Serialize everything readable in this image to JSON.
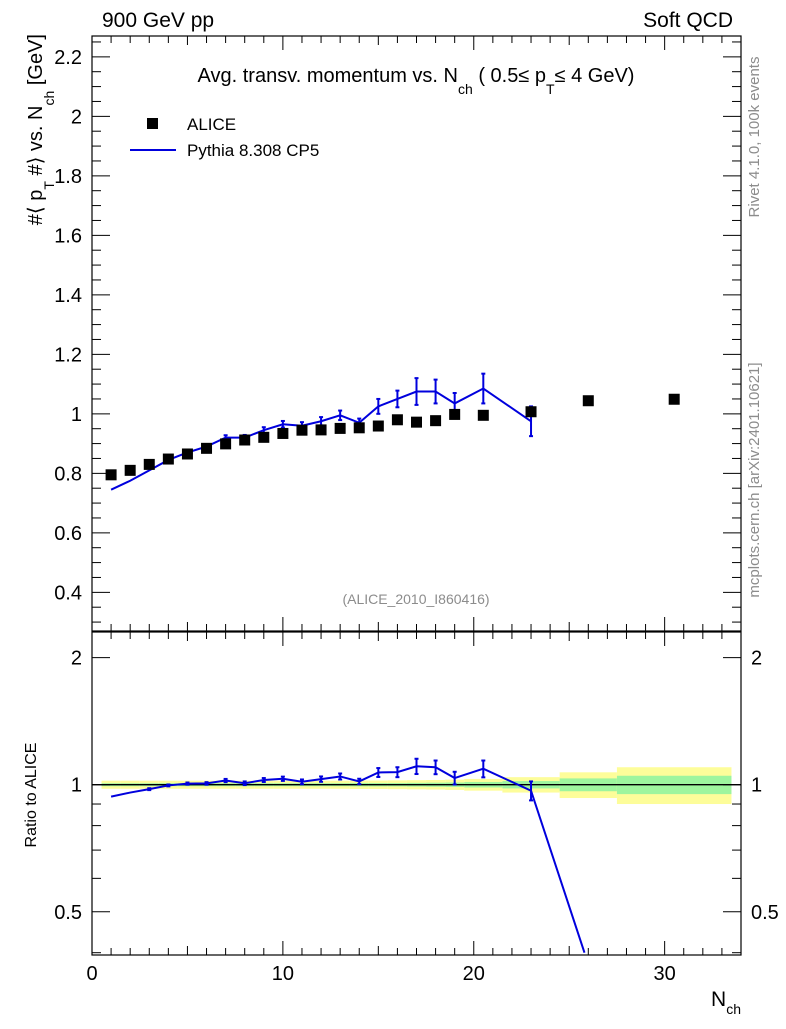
{
  "header": {
    "left": "900 GeV pp",
    "right": "Soft QCD"
  },
  "side_labels": {
    "top": "Rivet 4.1.0,  100k events",
    "bottom": "mcplots.cern.ch [arXiv:2401.10621]"
  },
  "chart_data": [
    {
      "type": "scatter",
      "title": "Avg. transv. momentum vs. N_ch ( 0.5≤ p_T≤ 4 GeV)",
      "title_parts": {
        "main": "Avg. transv. momentum vs. N",
        "sub1": "ch",
        "mid": " ( 0.5≤ p",
        "sub2": "T",
        "end": "≤ 4 GeV)"
      },
      "ylabel_parts": {
        "a": "#⟨ p",
        "sub1": "T",
        "b": " #⟩ vs. N",
        "sub2": "ch",
        "c": " [GeV]"
      },
      "watermark": "(ALICE_2010_I860416)",
      "xlim": [
        0,
        34
      ],
      "ylim": [
        0.27,
        2.27
      ],
      "yticks": [
        "0.4",
        "0.6",
        "0.8",
        "1",
        "1.2",
        "1.4",
        "1.6",
        "1.8",
        "2",
        "2.2"
      ],
      "legend": {
        "position": "top-left",
        "entries": [
          {
            "label": "ALICE",
            "marker": "square",
            "color": "#000000"
          },
          {
            "label": "Pythia 8.308 CP5",
            "marker": "line",
            "color": "#0000dd"
          }
        ]
      },
      "series": [
        {
          "name": "ALICE",
          "x": [
            1,
            2,
            3,
            4,
            5,
            6,
            7,
            8,
            9,
            10,
            11,
            12,
            13,
            14,
            15,
            16,
            17,
            18,
            19,
            20.5,
            23,
            26,
            30.5
          ],
          "y": [
            0.795,
            0.81,
            0.83,
            0.848,
            0.865,
            0.884,
            0.899,
            0.912,
            0.921,
            0.934,
            0.945,
            0.946,
            0.951,
            0.953,
            0.959,
            0.98,
            0.972,
            0.977,
            0.998,
            0.995,
            1.007,
            1.044,
            1.049
          ]
        },
        {
          "name": "Pythia 8.308 CP5",
          "x": [
            1,
            2,
            3,
            4,
            5,
            6,
            7,
            8,
            9,
            10,
            11,
            12,
            13,
            14,
            15,
            16,
            17,
            18,
            19,
            20.5,
            23
          ],
          "y": [
            0.745,
            0.775,
            0.81,
            0.845,
            0.87,
            0.89,
            0.92,
            0.92,
            0.945,
            0.965,
            0.96,
            0.975,
            0.995,
            0.97,
            1.025,
            1.05,
            1.075,
            1.075,
            1.035,
            1.085,
            0.975
          ],
          "err": [
            0.003,
            0.003,
            0.004,
            0.004,
            0.005,
            0.006,
            0.008,
            0.009,
            0.01,
            0.011,
            0.012,
            0.014,
            0.016,
            0.014,
            0.025,
            0.028,
            0.045,
            0.04,
            0.035,
            0.05,
            0.05
          ]
        }
      ]
    },
    {
      "type": "line",
      "ylabel": "Ratio to ALICE",
      "xlabel_main": "N",
      "xlabel_sub": "ch",
      "xlim": [
        0,
        34
      ],
      "ylim": [
        0.395,
        2.3
      ],
      "ylog": true,
      "xticks": [
        "0",
        "10",
        "20",
        "30"
      ],
      "yticks": [
        "0.5",
        "1",
        "2"
      ],
      "reference_line": 1.0,
      "bands": {
        "x_edges": [
          0.5,
          1.5,
          2.5,
          3.5,
          4.5,
          5.5,
          6.5,
          7.5,
          8.5,
          9.5,
          10.5,
          11.5,
          12.5,
          13.5,
          14.5,
          15.5,
          16.5,
          17.5,
          18.5,
          19.5,
          21.5,
          24.5,
          27.5,
          33.5
        ],
        "stat_half_width": [
          0.008,
          0.008,
          0.008,
          0.008,
          0.008,
          0.008,
          0.008,
          0.008,
          0.008,
          0.008,
          0.008,
          0.008,
          0.008,
          0.009,
          0.009,
          0.009,
          0.01,
          0.011,
          0.012,
          0.015,
          0.02,
          0.035,
          0.05
        ],
        "syst_half_width": [
          0.022,
          0.022,
          0.022,
          0.022,
          0.022,
          0.022,
          0.022,
          0.022,
          0.022,
          0.022,
          0.022,
          0.022,
          0.022,
          0.023,
          0.023,
          0.024,
          0.025,
          0.026,
          0.028,
          0.032,
          0.042,
          0.07,
          0.1
        ],
        "stat_color": "#9ef59e",
        "syst_color": "#fdfd9a"
      },
      "series": [
        {
          "name": "Pythia 8.308 CP5 / ALICE",
          "x": [
            1,
            2,
            3,
            4,
            5,
            6,
            7,
            8,
            9,
            10,
            11,
            12,
            13,
            14,
            15,
            16,
            17,
            18,
            19,
            20.5,
            23,
            25.8
          ],
          "y": [
            0.937,
            0.958,
            0.976,
            0.996,
            1.006,
            1.007,
            1.023,
            1.008,
            1.026,
            1.033,
            1.016,
            1.031,
            1.046,
            1.018,
            1.069,
            1.071,
            1.106,
            1.1,
            1.037,
            1.091,
            0.968,
            0.4
          ],
          "err": [
            0.004,
            0.004,
            0.005,
            0.005,
            0.006,
            0.007,
            0.009,
            0.01,
            0.011,
            0.012,
            0.013,
            0.015,
            0.017,
            0.015,
            0.026,
            0.029,
            0.046,
            0.041,
            0.036,
            0.05,
            0.05,
            0
          ]
        }
      ]
    }
  ]
}
